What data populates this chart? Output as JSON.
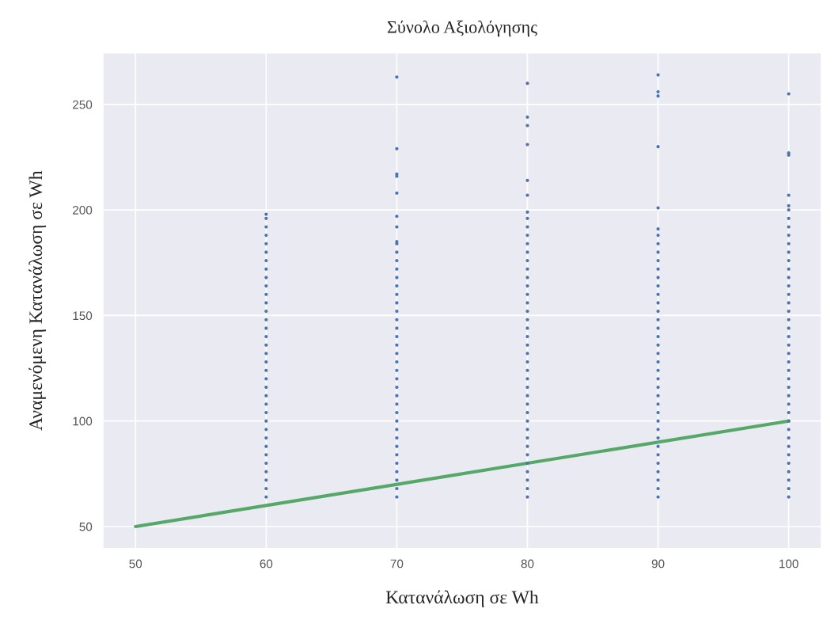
{
  "chart_data": {
    "type": "scatter",
    "title": "Σύνολο Αξιολόγησης",
    "xlabel": "Κατανάλωση σε Wh",
    "ylabel": "Αναμενόμενη Κατανάλωση σε Wh",
    "xlim": [
      47.5,
      102.5
    ],
    "ylim": [
      39.5,
      274.5
    ],
    "xticks": [
      50,
      60,
      70,
      80,
      90,
      100
    ],
    "yticks": [
      50,
      100,
      150,
      200,
      250
    ],
    "grid": true,
    "marker": "circle",
    "series": [
      {
        "color": "#4c72b0",
        "x": [
          60,
          60,
          60,
          60,
          60,
          60,
          60,
          60,
          60,
          60,
          60,
          60,
          60,
          60,
          60,
          60,
          60,
          60,
          60,
          60,
          60,
          60,
          60,
          60,
          60,
          60,
          60,
          60,
          60,
          60,
          60,
          60,
          60,
          60,
          60
        ],
        "values": [
          64,
          68,
          72,
          76,
          80,
          84,
          88,
          92,
          96,
          100,
          104,
          108,
          112,
          116,
          120,
          124,
          128,
          132,
          136,
          140,
          144,
          148,
          152,
          156,
          160,
          164,
          168,
          172,
          176,
          180,
          184,
          188,
          192,
          196,
          198
        ]
      },
      {
        "color": "#4c72b0",
        "x": [
          70,
          70,
          70,
          70,
          70,
          70,
          70,
          70,
          70,
          70,
          70,
          70,
          70,
          70,
          70,
          70,
          70,
          70,
          70,
          70,
          70,
          70,
          70,
          70,
          70,
          70,
          70,
          70,
          70,
          70,
          70,
          70,
          70,
          70,
          70,
          70,
          70,
          70,
          70
        ],
        "values": [
          64,
          68,
          72,
          76,
          80,
          84,
          88,
          92,
          96,
          100,
          104,
          108,
          112,
          116,
          120,
          124,
          128,
          132,
          136,
          140,
          144,
          148,
          152,
          156,
          160,
          164,
          168,
          172,
          176,
          180,
          184,
          185,
          192,
          197,
          208,
          216,
          217,
          229,
          263
        ]
      },
      {
        "color": "#4c72b0",
        "x": [
          80,
          80,
          80,
          80,
          80,
          80,
          80,
          80,
          80,
          80,
          80,
          80,
          80,
          80,
          80,
          80,
          80,
          80,
          80,
          80,
          80,
          80,
          80,
          80,
          80,
          80,
          80,
          80,
          80,
          80,
          80,
          80,
          80,
          80,
          80,
          80,
          80,
          80,
          80,
          80,
          80
        ],
        "values": [
          64,
          68,
          72,
          76,
          80,
          84,
          88,
          92,
          96,
          100,
          104,
          108,
          112,
          116,
          120,
          124,
          128,
          132,
          136,
          140,
          144,
          148,
          152,
          156,
          160,
          164,
          168,
          172,
          176,
          180,
          184,
          188,
          192,
          196,
          199,
          207,
          214,
          231,
          240,
          244,
          260
        ]
      },
      {
        "color": "#4c72b0",
        "x": [
          90,
          90,
          90,
          90,
          90,
          90,
          90,
          90,
          90,
          90,
          90,
          90,
          90,
          90,
          90,
          90,
          90,
          90,
          90,
          90,
          90,
          90,
          90,
          90,
          90,
          90,
          90,
          90,
          90,
          90,
          90,
          90,
          90,
          90,
          90,
          90,
          90,
          90
        ],
        "values": [
          64,
          68,
          72,
          76,
          80,
          84,
          88,
          92,
          96,
          100,
          104,
          108,
          112,
          116,
          120,
          124,
          128,
          132,
          136,
          140,
          144,
          148,
          152,
          156,
          160,
          164,
          168,
          172,
          176,
          180,
          184,
          188,
          191,
          201,
          230,
          254,
          256,
          264
        ]
      },
      {
        "color": "#4c72b0",
        "x": [
          100,
          100,
          100,
          100,
          100,
          100,
          100,
          100,
          100,
          100,
          100,
          100,
          100,
          100,
          100,
          100,
          100,
          100,
          100,
          100,
          100,
          100,
          100,
          100,
          100,
          100,
          100,
          100,
          100,
          100,
          100,
          100,
          100,
          100,
          100,
          100,
          100,
          100,
          100,
          100
        ],
        "values": [
          64,
          68,
          72,
          76,
          80,
          84,
          88,
          92,
          96,
          100,
          104,
          108,
          112,
          116,
          120,
          124,
          128,
          132,
          136,
          140,
          144,
          148,
          152,
          156,
          160,
          164,
          168,
          172,
          176,
          180,
          184,
          188,
          192,
          196,
          200,
          202,
          207,
          226,
          227,
          255
        ]
      },
      {
        "type": "line",
        "marker": "none",
        "color": "#55a868",
        "x": [
          50,
          100
        ],
        "values": [
          50,
          100
        ]
      }
    ]
  }
}
